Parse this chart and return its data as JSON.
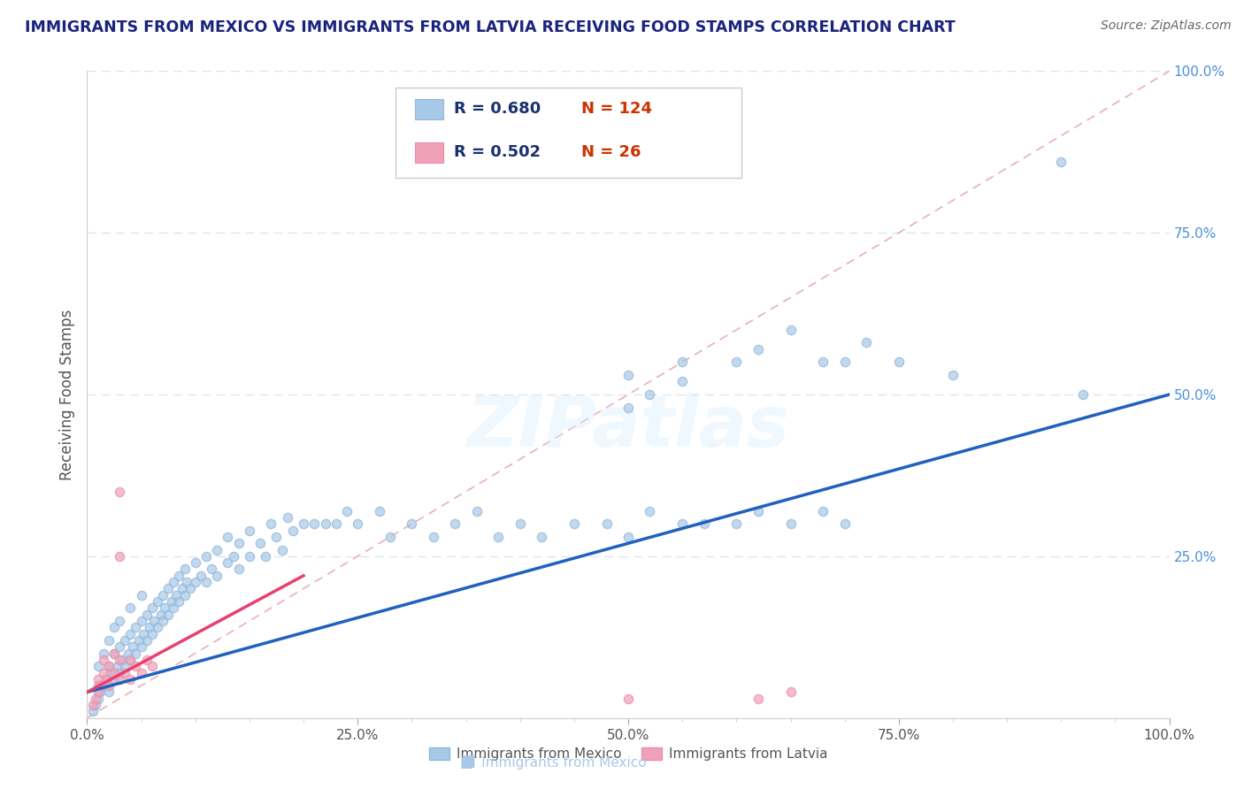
{
  "title": "IMMIGRANTS FROM MEXICO VS IMMIGRANTS FROM LATVIA RECEIVING FOOD STAMPS CORRELATION CHART",
  "source": "Source: ZipAtlas.com",
  "ylabel": "Receiving Food Stamps",
  "watermark": "ZIPatlas",
  "xlim": [
    0,
    1
  ],
  "ylim": [
    0,
    1
  ],
  "xtick_labels": [
    "0.0%",
    "",
    "",
    "",
    "",
    "25.0%",
    "",
    "",
    "",
    "",
    "50.0%",
    "",
    "",
    "",
    "",
    "75.0%",
    "",
    "",
    "",
    "",
    "100.0%"
  ],
  "xtick_vals": [
    0,
    0.05,
    0.1,
    0.15,
    0.2,
    0.25,
    0.3,
    0.35,
    0.4,
    0.45,
    0.5,
    0.55,
    0.6,
    0.65,
    0.7,
    0.75,
    0.8,
    0.85,
    0.9,
    0.95,
    1.0
  ],
  "right_ytick_labels": [
    "100.0%",
    "75.0%",
    "50.0%",
    "25.0%"
  ],
  "right_ytick_vals": [
    1.0,
    0.75,
    0.5,
    0.25
  ],
  "mexico_R": 0.68,
  "mexico_N": 124,
  "latvia_R": 0.502,
  "latvia_N": 26,
  "mexico_color": "#a8c8e8",
  "latvia_color": "#f0a0b8",
  "mexico_line_color": "#2060c0",
  "latvia_line_color": "#e84070",
  "diag_color": "#e8b0b8",
  "grid_color": "#d8e4f0",
  "title_color": "#1a237e",
  "source_color": "#666666",
  "bg_color": "#ffffff",
  "mexico_color_edge": "#90b8d8",
  "latvia_color_edge": "#e890a8",
  "mexico_x": [
    0.005,
    0.008,
    0.01,
    0.01,
    0.01,
    0.012,
    0.015,
    0.015,
    0.018,
    0.02,
    0.02,
    0.02,
    0.022,
    0.025,
    0.025,
    0.025,
    0.028,
    0.03,
    0.03,
    0.03,
    0.032,
    0.035,
    0.035,
    0.038,
    0.04,
    0.04,
    0.04,
    0.042,
    0.045,
    0.045,
    0.048,
    0.05,
    0.05,
    0.05,
    0.052,
    0.055,
    0.055,
    0.058,
    0.06,
    0.06,
    0.062,
    0.065,
    0.065,
    0.068,
    0.07,
    0.07,
    0.072,
    0.075,
    0.075,
    0.078,
    0.08,
    0.08,
    0.082,
    0.085,
    0.085,
    0.088,
    0.09,
    0.09,
    0.092,
    0.095,
    0.1,
    0.1,
    0.105,
    0.11,
    0.11,
    0.115,
    0.12,
    0.12,
    0.13,
    0.13,
    0.135,
    0.14,
    0.14,
    0.15,
    0.15,
    0.16,
    0.165,
    0.17,
    0.175,
    0.18,
    0.185,
    0.19,
    0.2,
    0.21,
    0.22,
    0.23,
    0.24,
    0.25,
    0.27,
    0.28,
    0.3,
    0.32,
    0.34,
    0.36,
    0.38,
    0.4,
    0.42,
    0.45,
    0.48,
    0.5,
    0.52,
    0.55,
    0.57,
    0.6,
    0.62,
    0.65,
    0.68,
    0.7,
    0.5,
    0.52,
    0.55,
    0.6,
    0.5,
    0.55,
    0.62,
    0.65,
    0.68,
    0.7,
    0.72,
    0.75,
    0.8,
    0.9,
    0.92
  ],
  "mexico_y": [
    0.01,
    0.02,
    0.03,
    0.05,
    0.08,
    0.04,
    0.05,
    0.1,
    0.06,
    0.04,
    0.08,
    0.12,
    0.07,
    0.06,
    0.1,
    0.14,
    0.08,
    0.07,
    0.11,
    0.15,
    0.09,
    0.08,
    0.12,
    0.1,
    0.09,
    0.13,
    0.17,
    0.11,
    0.1,
    0.14,
    0.12,
    0.11,
    0.15,
    0.19,
    0.13,
    0.12,
    0.16,
    0.14,
    0.13,
    0.17,
    0.15,
    0.14,
    0.18,
    0.16,
    0.15,
    0.19,
    0.17,
    0.16,
    0.2,
    0.18,
    0.17,
    0.21,
    0.19,
    0.18,
    0.22,
    0.2,
    0.19,
    0.23,
    0.21,
    0.2,
    0.21,
    0.24,
    0.22,
    0.21,
    0.25,
    0.23,
    0.22,
    0.26,
    0.24,
    0.28,
    0.25,
    0.23,
    0.27,
    0.25,
    0.29,
    0.27,
    0.25,
    0.3,
    0.28,
    0.26,
    0.31,
    0.29,
    0.3,
    0.3,
    0.3,
    0.3,
    0.32,
    0.3,
    0.32,
    0.28,
    0.3,
    0.28,
    0.3,
    0.32,
    0.28,
    0.3,
    0.28,
    0.3,
    0.3,
    0.28,
    0.32,
    0.3,
    0.3,
    0.3,
    0.32,
    0.3,
    0.32,
    0.3,
    0.48,
    0.5,
    0.52,
    0.55,
    0.53,
    0.55,
    0.57,
    0.6,
    0.55,
    0.55,
    0.58,
    0.55,
    0.53,
    0.86,
    0.5
  ],
  "latvia_x": [
    0.005,
    0.008,
    0.01,
    0.01,
    0.012,
    0.015,
    0.015,
    0.018,
    0.02,
    0.02,
    0.025,
    0.025,
    0.03,
    0.03,
    0.035,
    0.04,
    0.04,
    0.045,
    0.05,
    0.055,
    0.06,
    0.03,
    0.03,
    0.5,
    0.62,
    0.65
  ],
  "latvia_y": [
    0.02,
    0.03,
    0.04,
    0.06,
    0.05,
    0.07,
    0.09,
    0.06,
    0.05,
    0.08,
    0.07,
    0.1,
    0.06,
    0.09,
    0.07,
    0.06,
    0.09,
    0.08,
    0.07,
    0.09,
    0.08,
    0.35,
    0.25,
    0.03,
    0.03,
    0.04
  ],
  "mexico_line_x": [
    0.0,
    1.0
  ],
  "mexico_line_y": [
    0.04,
    0.5
  ],
  "latvia_line_x": [
    0.0,
    0.2
  ],
  "latvia_line_y": [
    0.04,
    0.22
  ]
}
